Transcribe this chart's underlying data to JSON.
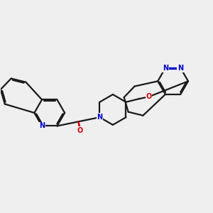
{
  "background_color": "#efefef",
  "bond_color": "#1a1a1a",
  "nitrogen_color": "#0000cc",
  "oxygen_color": "#cc0000",
  "line_width": 1.6,
  "dbo": 0.055,
  "figsize": [
    3.0,
    3.0
  ],
  "dpi": 100,
  "xlim": [
    0,
    10
  ],
  "ylim": [
    0,
    10
  ]
}
